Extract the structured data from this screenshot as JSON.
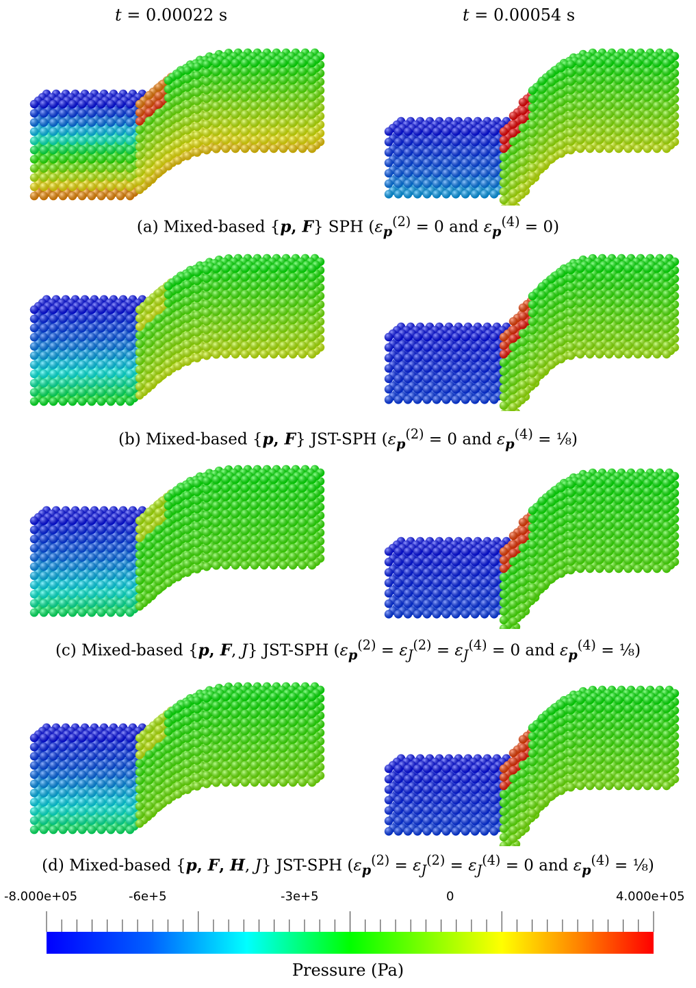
{
  "figure": {
    "time_labels": [
      "t = 0.00022 s",
      "t = 0.00054 s"
    ],
    "captions": [
      "(a) Mixed-based {p, F} SPH (ε_p^(2) = 0 and ε_p^(4) = 0)",
      "(b) Mixed-based {p, F} JST-SPH (ε_p^(2) = 0 and ε_p^(4) = 1/8)",
      "(c) Mixed-based {p, F, J} JST-SPH (ε_p^(2) = ε_J^(2) = ε_J^(4) = 0 and ε_p^(4) = 1/8)",
      "(d) Mixed-based {p, F, H, J} JST-SPH (ε_p^(2) = ε_J^(2) = ε_J^(4) = 0 and ε_p^(4) = 1/8)"
    ],
    "colorbar": {
      "title": "Pressure (Pa)",
      "min_label": "-8.000e+05",
      "max_label": "4.000e+05",
      "tick_labels": [
        "-6e+5",
        "-3e+5",
        "0"
      ],
      "range": [
        -800000,
        400000
      ],
      "colormap": [
        "#0000ff",
        "#00ffff",
        "#00ff00",
        "#ffff00",
        "#ff0000"
      ]
    }
  }
}
